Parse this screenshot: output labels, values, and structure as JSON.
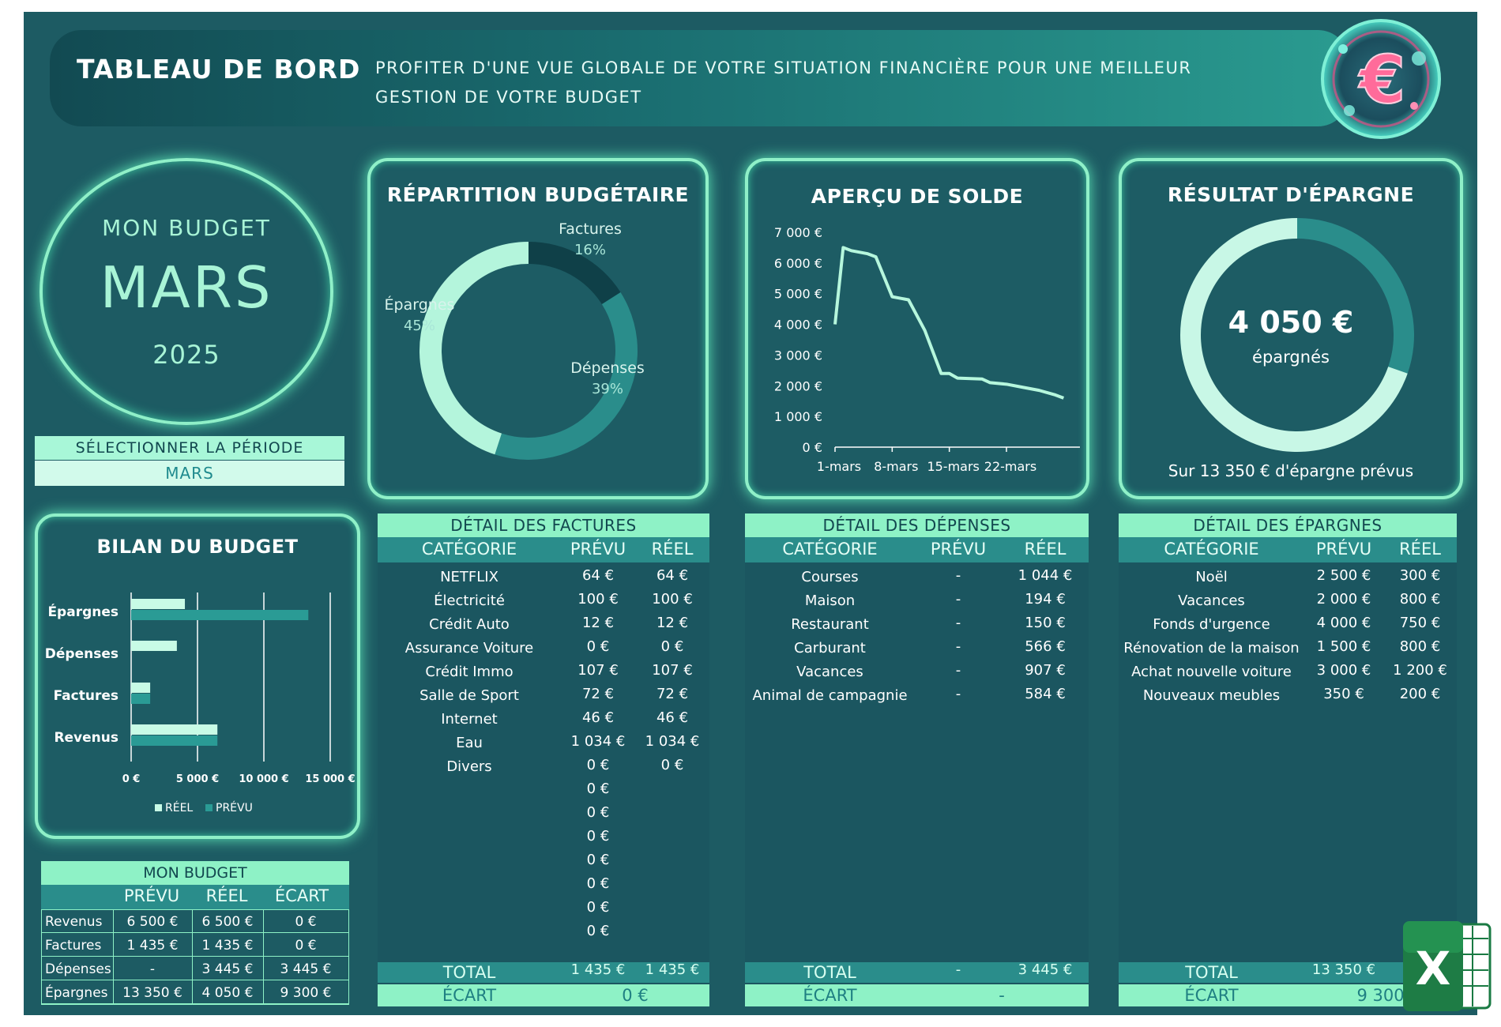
{
  "header": {
    "title": "TABLEAU DE BORD",
    "subtitle": "PROFITER D'UNE VUE GLOBALE DE VOTRE SITUATION FINANCIÈRE POUR UNE MEILLEUR GESTION DE VOTRE BUDGET",
    "logo_symbol": "€"
  },
  "month_card": {
    "label": "MON BUDGET",
    "month": "MARS",
    "year": "2025"
  },
  "period_selector": {
    "label": "SÉLECTIONNER LA PÉRIODE",
    "value": "MARS"
  },
  "repartition": {
    "title": "RÉPARTITION BUDGÉTAIRE",
    "chart_data": {
      "type": "pie",
      "slices": [
        {
          "name": "Factures",
          "value": 16,
          "label": "16%",
          "color": "#0f4048"
        },
        {
          "name": "Dépenses",
          "value": 39,
          "label": "39%",
          "color": "#2a8d8b"
        },
        {
          "name": "Épargnes",
          "value": 45,
          "label": "45%",
          "color": "#b4f5dc"
        }
      ]
    }
  },
  "solde": {
    "title": "APERÇU DE SOLDE",
    "chart_data": {
      "type": "line",
      "x_ticks": [
        "1-mars",
        "8-mars",
        "15-mars",
        "22-mars"
      ],
      "y_ticks": [
        "0 €",
        "1 000 €",
        "2 000 €",
        "3 000 €",
        "4 000 €",
        "5 000 €",
        "6 000 €",
        "7 000 €"
      ],
      "ylim": [
        0,
        7000
      ],
      "xlim": [
        1,
        31
      ],
      "points": [
        [
          1,
          4000
        ],
        [
          2,
          6500
        ],
        [
          3,
          6400
        ],
        [
          5,
          6300
        ],
        [
          6,
          6200
        ],
        [
          8,
          4900
        ],
        [
          9,
          4850
        ],
        [
          10,
          4800
        ],
        [
          12,
          3800
        ],
        [
          14,
          2400
        ],
        [
          15,
          2400
        ],
        [
          16,
          2250
        ],
        [
          18,
          2230
        ],
        [
          19,
          2220
        ],
        [
          20,
          2100
        ],
        [
          22,
          2050
        ],
        [
          24,
          1950
        ],
        [
          26,
          1850
        ],
        [
          28,
          1700
        ],
        [
          29,
          1600
        ]
      ],
      "color": "#b6f7dd"
    }
  },
  "epargne": {
    "title": "RÉSULTAT D'ÉPARGNE",
    "amount": "4 050 €",
    "amount_label": "épargnés",
    "footer": "Sur  13 350 € d'épargne prévus",
    "chart_data": {
      "type": "pie",
      "slices": [
        {
          "name": "Réel",
          "value": 4050,
          "color": "#2a8d8b"
        },
        {
          "name": "Restant",
          "value": 9300,
          "color": "#c8f7e6"
        }
      ]
    }
  },
  "bilan": {
    "title": "BILAN DU BUDGET",
    "chart_data": {
      "type": "bar",
      "orientation": "horizontal",
      "categories": [
        "Épargnes",
        "Dépenses",
        "Factures",
        "Revenus"
      ],
      "series": [
        {
          "name": "RÉEL",
          "values": [
            4050,
            3445,
            1435,
            6500
          ],
          "color": "#c8fbe6"
        },
        {
          "name": "PRÉVU",
          "values": [
            13350,
            0,
            1435,
            6500
          ],
          "color": "#2a9b95"
        }
      ],
      "x_ticks": [
        "0 €",
        "5 000 €",
        "10 000 €",
        "15 000 €"
      ],
      "xlim": [
        0,
        15000
      ]
    }
  },
  "mon_budget": {
    "title": "MON BUDGET",
    "columns": [
      "PRÉVU",
      "RÉEL",
      "ÉCART"
    ],
    "rows": [
      {
        "label": "Revenus",
        "prevu": "6 500 €",
        "reel": "6 500 €",
        "ecart": "0 €"
      },
      {
        "label": "Factures",
        "prevu": "1 435 €",
        "reel": "1 435 €",
        "ecart": "0 €"
      },
      {
        "label": "Dépenses",
        "prevu": "-",
        "reel": "3 445 €",
        "ecart": "3 445 €"
      },
      {
        "label": "Épargnes",
        "prevu": "13 350 €",
        "reel": "4 050 €",
        "ecart": "9 300 €"
      }
    ]
  },
  "factures": {
    "title": "DÉTAIL DES FACTURES",
    "columns": [
      "CATÉGORIE",
      "PRÉVU",
      "RÉEL"
    ],
    "rows": [
      {
        "cat": "NETFLIX",
        "prevu": "64 €",
        "reel": "64 €"
      },
      {
        "cat": "Électricité",
        "prevu": "100 €",
        "reel": "100 €"
      },
      {
        "cat": "Crédit Auto",
        "prevu": "12 €",
        "reel": "12 €"
      },
      {
        "cat": "Assurance Voiture",
        "prevu": "0 €",
        "reel": "0 €"
      },
      {
        "cat": "Crédit Immo",
        "prevu": "107 €",
        "reel": "107 €"
      },
      {
        "cat": "Salle de Sport",
        "prevu": "72 €",
        "reel": "72 €"
      },
      {
        "cat": "Internet",
        "prevu": "46 €",
        "reel": "46 €"
      },
      {
        "cat": "Eau",
        "prevu": "1 034 €",
        "reel": "1 034 €"
      },
      {
        "cat": "Divers",
        "prevu": "0 €",
        "reel": "0 €"
      },
      {
        "cat": "",
        "prevu": "0 €",
        "reel": ""
      },
      {
        "cat": "",
        "prevu": "0 €",
        "reel": ""
      },
      {
        "cat": "",
        "prevu": "0 €",
        "reel": ""
      },
      {
        "cat": "",
        "prevu": "0 €",
        "reel": ""
      },
      {
        "cat": "",
        "prevu": "0 €",
        "reel": ""
      },
      {
        "cat": "",
        "prevu": "0 €",
        "reel": ""
      },
      {
        "cat": "",
        "prevu": "0 €",
        "reel": ""
      }
    ],
    "total_label": "TOTAL",
    "total_prevu": "1 435 €",
    "total_reel": "1 435 €",
    "ecart_label": "ÉCART",
    "ecart_value": "0 €"
  },
  "depenses": {
    "title": "DÉTAIL DES DÉPENSES",
    "columns": [
      "CATÉGORIE",
      "PRÉVU",
      "RÉEL"
    ],
    "rows": [
      {
        "cat": "Courses",
        "prevu": "-",
        "reel": "1 044 €"
      },
      {
        "cat": "Maison",
        "prevu": "-",
        "reel": "194 €"
      },
      {
        "cat": "Restaurant",
        "prevu": "-",
        "reel": "150 €"
      },
      {
        "cat": "Carburant",
        "prevu": "-",
        "reel": "566 €"
      },
      {
        "cat": "Vacances",
        "prevu": "-",
        "reel": "907 €"
      },
      {
        "cat": "Animal de campagnie",
        "prevu": "-",
        "reel": "584 €"
      }
    ],
    "total_label": "TOTAL",
    "total_prevu": "-",
    "total_reel": "3 445 €",
    "ecart_label": "ÉCART",
    "ecart_value": "-"
  },
  "epargnes_detail": {
    "title": "DÉTAIL DES ÉPARGNES",
    "columns": [
      "CATÉGORIE",
      "PRÉVU",
      "RÉEL"
    ],
    "rows": [
      {
        "cat": "Noël",
        "prevu": "2 500 €",
        "reel": "300 €"
      },
      {
        "cat": "Vacances",
        "prevu": "2 000 €",
        "reel": "800 €"
      },
      {
        "cat": "Fonds d'urgence",
        "prevu": "4 000 €",
        "reel": "750 €"
      },
      {
        "cat": "Rénovation de la maison",
        "prevu": "1 500 €",
        "reel": "800 €"
      },
      {
        "cat": "Achat nouvelle voiture",
        "prevu": "3 000 €",
        "reel": "1 200 €"
      },
      {
        "cat": "Nouveaux meubles",
        "prevu": "350 €",
        "reel": "200 €"
      }
    ],
    "total_label": "TOTAL",
    "total_prevu": "13 350 €",
    "total_reel": "",
    "ecart_label": "ÉCART",
    "ecart_value": "9 300"
  },
  "excel_icon": {
    "letter": "X"
  },
  "colors": {
    "background": "#1d5b63",
    "accent": "#8ef2c6",
    "glow": "#5fe8b8",
    "mid": "#2a8d8b",
    "dark": "#0f4048"
  }
}
